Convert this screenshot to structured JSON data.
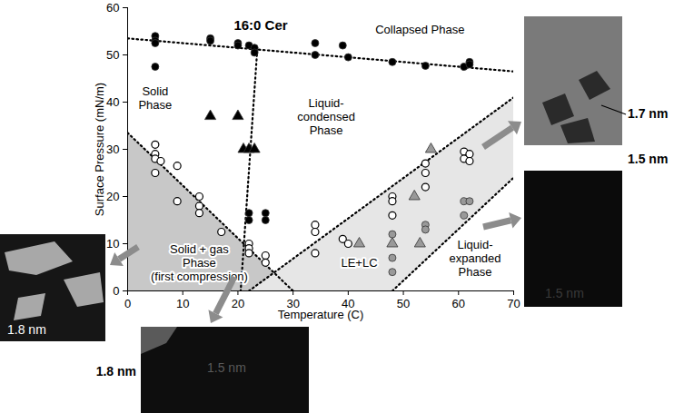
{
  "chart_data": {
    "type": "scatter",
    "title": "16:0 Cer",
    "x_label": "Temperature (C)",
    "y_label": "Surface Pressure (mN/m)",
    "xlim": [
      0,
      70
    ],
    "ylim": [
      0,
      60
    ],
    "xticks": [
      0,
      10,
      20,
      30,
      40,
      50,
      60,
      70
    ],
    "yticks": [
      0,
      10,
      20,
      30,
      40,
      50,
      60
    ],
    "grid": false,
    "series": [
      {
        "marker": "circle",
        "color": "#000000",
        "values": [
          [
            5,
            54
          ],
          [
            5,
            53
          ],
          [
            5,
            52.5
          ],
          [
            5,
            47.5
          ],
          [
            15,
            53.5
          ],
          [
            15,
            53
          ],
          [
            20,
            52.5
          ],
          [
            20,
            52
          ],
          [
            22,
            52
          ],
          [
            23,
            51.5
          ],
          [
            23,
            50.5
          ],
          [
            34,
            52.5
          ],
          [
            34,
            50
          ],
          [
            39,
            52
          ],
          [
            40,
            49.5
          ],
          [
            48,
            48.5
          ],
          [
            54,
            47.7
          ],
          [
            61,
            47.5
          ],
          [
            62,
            48.5
          ],
          [
            62,
            48
          ],
          [
            22,
            16.5
          ],
          [
            22,
            15
          ],
          [
            25,
            16.5
          ],
          [
            25,
            15
          ]
        ]
      },
      {
        "marker": "triangle",
        "color": "#000000",
        "values": [
          [
            15,
            37
          ],
          [
            20,
            37
          ],
          [
            21,
            30
          ],
          [
            22,
            30
          ],
          [
            23,
            30
          ]
        ]
      },
      {
        "marker": "open-circle",
        "color": "#000000",
        "values": [
          [
            5,
            31
          ],
          [
            5,
            29
          ],
          [
            5,
            28
          ],
          [
            5,
            25
          ],
          [
            6,
            27.5
          ],
          [
            9,
            26.5
          ],
          [
            9,
            19
          ],
          [
            13,
            20
          ],
          [
            13,
            18
          ],
          [
            13,
            16.5
          ],
          [
            17,
            12.5
          ],
          [
            22,
            10
          ],
          [
            22,
            9
          ],
          [
            22,
            8
          ],
          [
            25,
            7.5
          ],
          [
            25,
            6
          ],
          [
            34,
            14
          ],
          [
            34,
            12.5
          ],
          [
            34,
            8
          ],
          [
            39,
            11
          ],
          [
            40,
            10
          ],
          [
            48,
            20
          ],
          [
            48,
            19
          ],
          [
            48,
            16
          ],
          [
            54,
            27
          ],
          [
            54,
            25
          ],
          [
            54,
            22
          ],
          [
            61,
            29.5
          ],
          [
            61,
            28
          ],
          [
            62,
            29
          ],
          [
            62,
            27.5
          ]
        ]
      },
      {
        "marker": "triangle",
        "color": "#999999",
        "values": [
          [
            42,
            10
          ],
          [
            48,
            10
          ],
          [
            52,
            20
          ],
          [
            53,
            10
          ],
          [
            55,
            30
          ]
        ]
      },
      {
        "marker": "circle",
        "color": "#999999",
        "values": [
          [
            48,
            12
          ],
          [
            48,
            7
          ],
          [
            48,
            4
          ],
          [
            54,
            14
          ],
          [
            54,
            13
          ],
          [
            61,
            19
          ],
          [
            62,
            19
          ],
          [
            61,
            16
          ]
        ]
      }
    ],
    "regions": [
      {
        "color": "#c8c8c8",
        "values": [
          [
            0,
            0
          ],
          [
            0,
            33.5
          ],
          [
            30,
            0
          ]
        ]
      },
      {
        "color": "#e6e6e6",
        "values": [
          [
            22,
            0
          ],
          [
            70,
            41
          ],
          [
            70,
            24
          ],
          [
            48,
            0
          ]
        ]
      }
    ],
    "lines": [
      {
        "line_style": "dotted",
        "values": [
          [
            0,
            53.5
          ],
          [
            70,
            46.5
          ]
        ]
      },
      {
        "line_style": "dotted",
        "values": [
          [
            23.5,
            51
          ],
          [
            20.5,
            0
          ]
        ]
      },
      {
        "line_style": "dotted",
        "values": [
          [
            0,
            33.5
          ],
          [
            30,
            0
          ]
        ]
      },
      {
        "line_style": "dotted",
        "values": [
          [
            22,
            0
          ],
          [
            70,
            41
          ]
        ]
      },
      {
        "line_style": "dotted",
        "values": [
          [
            48,
            0
          ],
          [
            70,
            24
          ]
        ]
      }
    ],
    "annotations": [
      {
        "text": "Collapsed Phase",
        "x": 53,
        "y": 55.5
      },
      {
        "text": "Solid\nPhase",
        "x": 5,
        "y": 41
      },
      {
        "text": "Liquid-\ncondensed\nPhase",
        "x": 36,
        "y": 37
      },
      {
        "text": "Solid + gas\nPhase\n(first compression)",
        "x": 13,
        "y": 6
      },
      {
        "text": "LE+LC",
        "x": 42,
        "y": 6
      },
      {
        "text": "Liquid-\nexpanded\nPhase",
        "x": 63,
        "y": 7
      }
    ],
    "insets": [
      {
        "labels": [
          "1.8 nm"
        ]
      },
      {
        "labels": [
          "1.8 nm",
          "1.5 nm"
        ]
      },
      {
        "labels": [
          "1.7 nm",
          "1.5 nm"
        ]
      },
      {
        "labels": [
          "1.5 nm"
        ]
      }
    ]
  }
}
